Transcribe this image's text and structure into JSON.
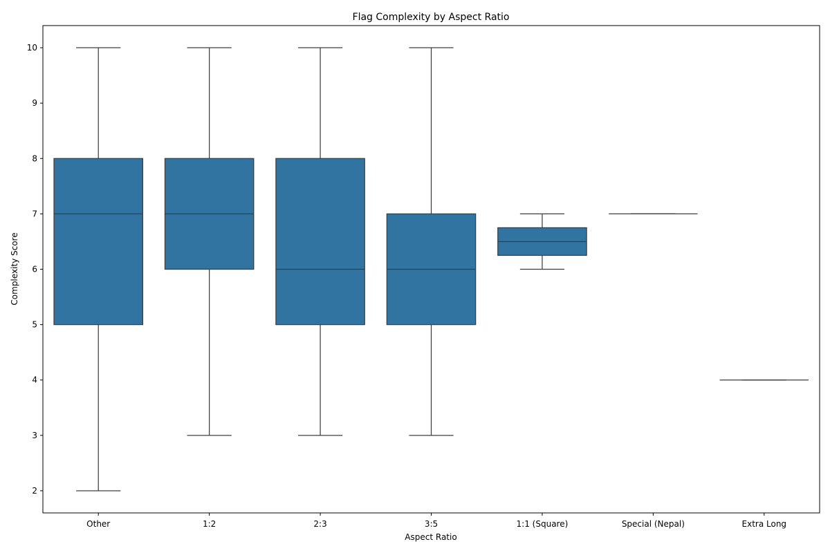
{
  "chart_data": {
    "type": "box",
    "title": "Flag Complexity by Aspect Ratio",
    "xlabel": "Aspect Ratio",
    "ylabel": "Complexity Score",
    "ylim": [
      1.6,
      10.4
    ],
    "yticks": [
      2,
      3,
      4,
      5,
      6,
      7,
      8,
      9,
      10
    ],
    "grid": false,
    "box_color": "#3274a1",
    "line_color": "#3d3d3d",
    "categories": [
      "Other",
      "1:2",
      "2:3",
      "3:5",
      "1:1 (Square)",
      "Special (Nepal)",
      "Extra Long"
    ],
    "boxes": [
      {
        "category": "Other",
        "whisker_low": 2,
        "q1": 5,
        "median": 7,
        "q3": 8,
        "whisker_high": 10
      },
      {
        "category": "1:2",
        "whisker_low": 3,
        "q1": 6,
        "median": 7,
        "q3": 8,
        "whisker_high": 10
      },
      {
        "category": "2:3",
        "whisker_low": 3,
        "q1": 5,
        "median": 6,
        "q3": 8,
        "whisker_high": 10
      },
      {
        "category": "3:5",
        "whisker_low": 3,
        "q1": 5,
        "median": 6,
        "q3": 7,
        "whisker_high": 10
      },
      {
        "category": "1:1 (Square)",
        "whisker_low": 6,
        "q1": 6.25,
        "median": 6.5,
        "q3": 6.75,
        "whisker_high": 7
      },
      {
        "category": "Special (Nepal)",
        "whisker_low": 7,
        "q1": 7,
        "median": 7,
        "q3": 7,
        "whisker_high": 7
      },
      {
        "category": "Extra Long",
        "whisker_low": 4,
        "q1": 4,
        "median": 4,
        "q3": 4,
        "whisker_high": 4
      }
    ]
  }
}
